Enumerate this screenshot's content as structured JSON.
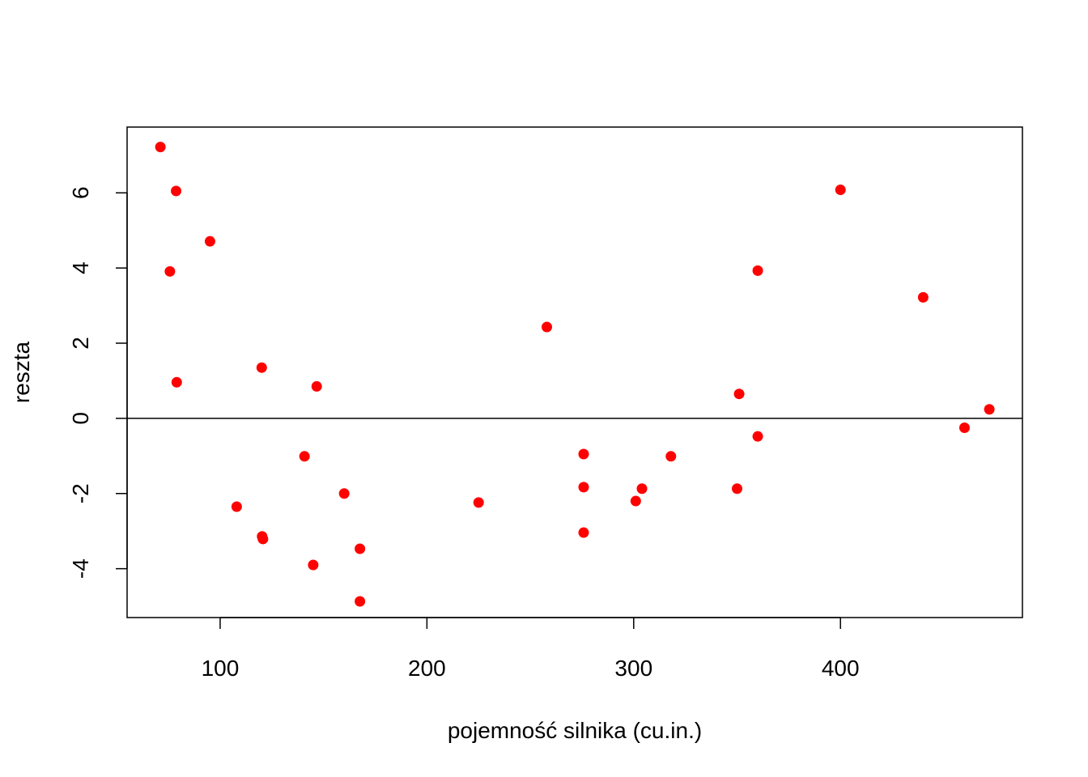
{
  "chart_data": {
    "type": "scatter",
    "title": "",
    "xlabel": "pojemność silnika (cu.in.)",
    "ylabel": "reszta",
    "xlim": [
      55,
      488
    ],
    "ylim": [
      -5.3,
      7.75
    ],
    "x_ticks": [
      100,
      200,
      300,
      400
    ],
    "y_ticks": [
      -4,
      -2,
      0,
      2,
      4,
      6
    ],
    "reference_line": {
      "orientation": "horizontal",
      "y": 0
    },
    "point_color": "#ff0000",
    "grid": false,
    "legend": "none",
    "series": [
      {
        "points": [
          {
            "x": 71.1,
            "y": 7.22
          },
          {
            "x": 78.7,
            "y": 6.05
          },
          {
            "x": 95.1,
            "y": 4.71
          },
          {
            "x": 75.7,
            "y": 3.91
          },
          {
            "x": 79.0,
            "y": 0.96
          },
          {
            "x": 120.1,
            "y": 1.35
          },
          {
            "x": 146.7,
            "y": 0.85
          },
          {
            "x": 140.8,
            "y": -1.01
          },
          {
            "x": 108.0,
            "y": -2.35
          },
          {
            "x": 120.3,
            "y": -3.14
          },
          {
            "x": 120.7,
            "y": -3.21
          },
          {
            "x": 160.0,
            "y": -2.0
          },
          {
            "x": 145.0,
            "y": -3.9
          },
          {
            "x": 167.6,
            "y": -3.47
          },
          {
            "x": 167.6,
            "y": -4.87
          },
          {
            "x": 225.0,
            "y": -2.24
          },
          {
            "x": 258.0,
            "y": 2.43
          },
          {
            "x": 275.8,
            "y": -0.95
          },
          {
            "x": 275.8,
            "y": -1.83
          },
          {
            "x": 275.8,
            "y": -3.04
          },
          {
            "x": 301.0,
            "y": -2.2
          },
          {
            "x": 304.0,
            "y": -1.87
          },
          {
            "x": 318.0,
            "y": -1.01
          },
          {
            "x": 350.0,
            "y": -1.87
          },
          {
            "x": 351.0,
            "y": 0.65
          },
          {
            "x": 360.0,
            "y": 3.93
          },
          {
            "x": 360.0,
            "y": -0.48
          },
          {
            "x": 400.0,
            "y": 6.08
          },
          {
            "x": 440.0,
            "y": 3.22
          },
          {
            "x": 460.0,
            "y": -0.25
          },
          {
            "x": 472.0,
            "y": 0.24
          }
        ]
      }
    ]
  }
}
